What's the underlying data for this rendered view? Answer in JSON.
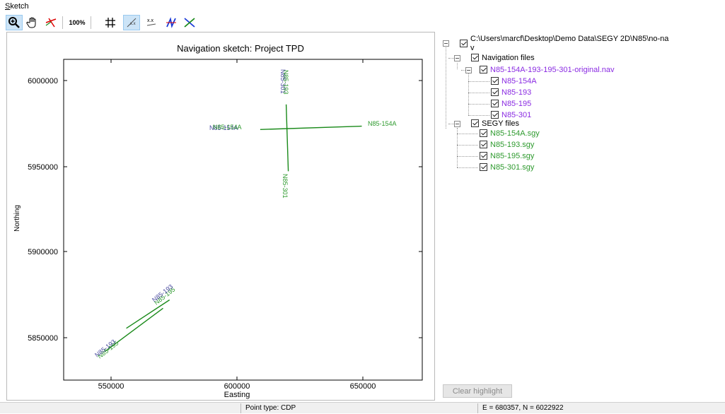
{
  "menu": {
    "sketch_prefix": "S",
    "sketch_rest": "ketch"
  },
  "toolbar": {
    "zoom_100_label": "100%",
    "xx_label": "x.x"
  },
  "plot": {
    "title": "Navigation sketch: Project TPD",
    "xlabel": "Easting",
    "ylabel": "Northing",
    "x_ticks": [
      "550000",
      "600000",
      "650000"
    ],
    "y_ticks": [
      "6000000",
      "5950000",
      "5900000",
      "5850000"
    ],
    "line_labels": {
      "n154a_east": "N85-154A",
      "n154a_west_a": "N85-154A",
      "n154a_west_b": "N85-154A",
      "n301_south": "N85-301",
      "n301_north_a": "N85-301",
      "n301_north_b": "N85-193",
      "sw_a": "N85-195",
      "sw_b": "N85-193",
      "ne_a": "N85-195",
      "ne_b": "N85-193"
    }
  },
  "chart_data": {
    "type": "line",
    "title": "Navigation sketch: Project TPD",
    "xlabel": "Easting",
    "ylabel": "Northing",
    "xlim": [
      522000,
      688000
    ],
    "ylim": [
      5822000,
      6014000
    ],
    "series": [
      {
        "name": "N85-154A",
        "x": [
          613000,
          660000
        ],
        "y": [
          5972000,
          5974000
        ],
        "color": "#1a8a1a"
      },
      {
        "name": "N85-301",
        "x": [
          625000,
          626000
        ],
        "y": [
          5987000,
          5947000
        ],
        "color": "#1a8a1a"
      },
      {
        "name": "N85-193",
        "x": [
          551000,
          571000
        ],
        "y": [
          5853000,
          5870000
        ],
        "color": "#1a8a1a"
      },
      {
        "name": "N85-195",
        "x": [
          541000,
          568000
        ],
        "y": [
          5839000,
          5865000
        ],
        "color": "#1a8a1a"
      }
    ]
  },
  "tree": {
    "root": "C:\\Users\\marcf\\Desktop\\Demo Data\\SEGY 2D\\N85\\no-na",
    "root_wrap": "v",
    "nav_group": "Navigation files",
    "nav_file": "N85-154A-193-195-301-original.nav",
    "nav_lines": [
      "N85-154A",
      "N85-193",
      "N85-195",
      "N85-301"
    ],
    "segy_group": "SEGY files",
    "segy_files": [
      "N85-154A.sgy",
      "N85-193.sgy",
      "N85-195.sgy",
      "N85-301.sgy"
    ]
  },
  "buttons": {
    "clear_highlight": "Clear highlight"
  },
  "status": {
    "point_type": "Point type: CDP",
    "coords": "E = 680357, N = 6022922"
  },
  "colors": {
    "purple": "#8a2be2",
    "green": "#2e9a2e",
    "line_green": "#1a8a1a",
    "label_blue": "#4a4aa0"
  }
}
